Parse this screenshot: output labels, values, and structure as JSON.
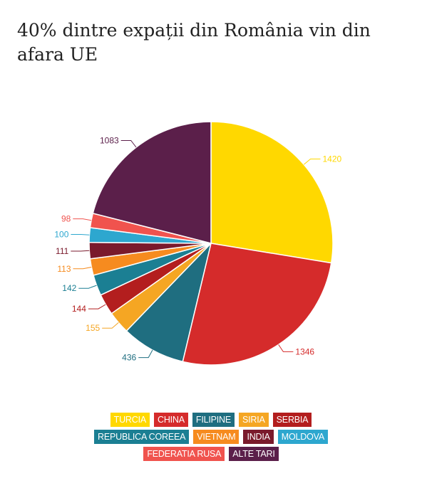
{
  "title": "40% dintre expații din România vin din afara UE",
  "chart_data": {
    "type": "pie",
    "categories": [
      "TURCIA",
      "CHINA",
      "FILIPINE",
      "SIRIA",
      "SERBIA",
      "REPUBLICA COREEA",
      "VIETNAM",
      "INDIA",
      "MOLDOVA",
      "FEDERATIA RUSA",
      "ALTE TARI"
    ],
    "values": [
      1420,
      1346,
      436,
      155,
      144,
      142,
      113,
      111,
      100,
      98,
      1083
    ],
    "colors": [
      "#FFD800",
      "#D52B2B",
      "#1F6E80",
      "#F5A623",
      "#B31E1E",
      "#1B7F93",
      "#F68B1F",
      "#7A1A2C",
      "#2DA7CF",
      "#F0534E",
      "#5B1F4A"
    ],
    "legend_position": "bottom",
    "legend_rows": [
      [
        "TURCIA",
        "CHINA",
        "FILIPINE",
        "SIRIA",
        "SERBIA"
      ],
      [
        "REPUBLICA COREEA",
        "VIETNAM",
        "INDIA",
        "MOLDOVA"
      ],
      [
        "FEDERATIA RUSA",
        "ALTE TARI"
      ]
    ]
  }
}
